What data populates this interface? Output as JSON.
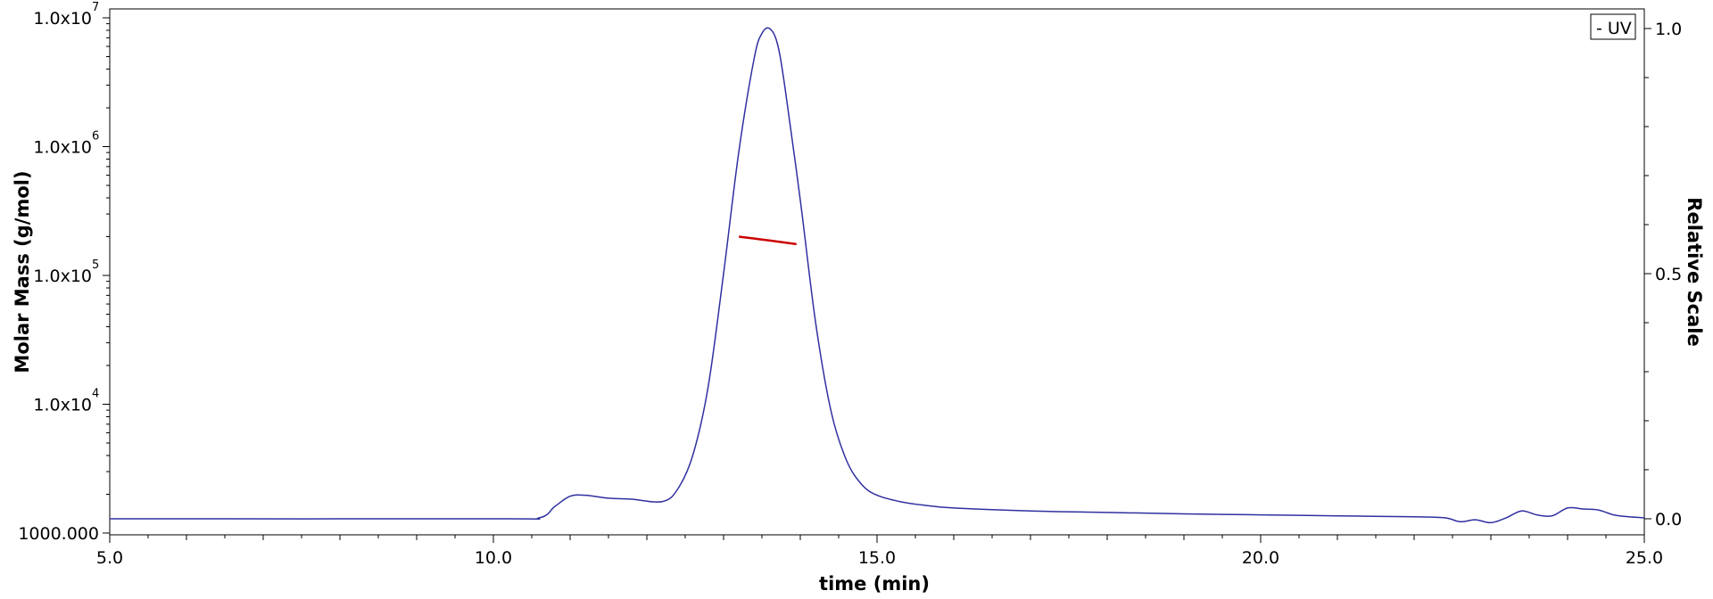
{
  "chart_data": {
    "type": "line",
    "xlabel": "time (min)",
    "ylabel_left": "Molar Mass (g/mol)",
    "ylabel_right": "Relative Scale",
    "xlim": [
      5,
      25
    ],
    "ylim_left": [
      1000,
      10000000
    ],
    "ylim_right": [
      0,
      1.0
    ],
    "left_scale": "log",
    "grid": false,
    "x_ticks": [
      {
        "value": 5,
        "label": "5.0"
      },
      {
        "value": 10,
        "label": "10.0"
      },
      {
        "value": 15,
        "label": "15.0"
      },
      {
        "value": 20,
        "label": "20.0"
      },
      {
        "value": 25,
        "label": "25.0"
      }
    ],
    "y_left_ticks": [
      {
        "value": 1000,
        "label": "1000.000",
        "exp": ""
      },
      {
        "value": 10000,
        "label": "1.0x10",
        "exp": "4"
      },
      {
        "value": 100000,
        "label": "1.0x10",
        "exp": "5"
      },
      {
        "value": 1000000,
        "label": "1.0x10",
        "exp": "6"
      },
      {
        "value": 10000000,
        "label": "1.0x10",
        "exp": "7"
      }
    ],
    "y_right_ticks": [
      {
        "value": 0,
        "label": "0.0"
      },
      {
        "value": 0.5,
        "label": "0.5"
      },
      {
        "value": 1.0,
        "label": "1.0"
      }
    ],
    "legend": {
      "placement": "top-right",
      "entries": [
        "- UV"
      ]
    },
    "series": [
      {
        "name": "UV",
        "axis": "right",
        "color": "#3030a0",
        "x": [
          5.0,
          10.0,
          10.6,
          10.8,
          11.0,
          11.2,
          11.5,
          11.8,
          12.2,
          12.4,
          12.6,
          12.8,
          13.0,
          13.2,
          13.4,
          13.5,
          13.6,
          13.7,
          13.8,
          14.0,
          14.2,
          14.4,
          14.6,
          14.8,
          15.0,
          15.3,
          15.6,
          16.0,
          17.0,
          18.0,
          19.0,
          20.0,
          21.0,
          22.0,
          22.4,
          22.6,
          22.8,
          23.0,
          23.2,
          23.4,
          23.6,
          23.8,
          24.0,
          24.2,
          24.4,
          24.6,
          24.8,
          25.0
        ],
        "y": [
          0.0,
          0.0,
          0.002,
          0.025,
          0.046,
          0.048,
          0.042,
          0.04,
          0.035,
          0.06,
          0.13,
          0.27,
          0.5,
          0.75,
          0.94,
          0.99,
          1.0,
          0.97,
          0.88,
          0.65,
          0.4,
          0.22,
          0.12,
          0.07,
          0.048,
          0.035,
          0.028,
          0.022,
          0.016,
          0.013,
          0.01,
          0.008,
          0.006,
          0.004,
          0.002,
          -0.006,
          -0.002,
          -0.008,
          0.002,
          0.016,
          0.008,
          0.006,
          0.022,
          0.02,
          0.018,
          0.008,
          0.004,
          0.002
        ]
      },
      {
        "name": "",
        "axis": "left",
        "color": "#cc0000",
        "x": [
          13.2,
          13.5,
          13.8,
          13.95
        ],
        "y": [
          200000,
          190000,
          180000,
          175000
        ]
      }
    ]
  }
}
